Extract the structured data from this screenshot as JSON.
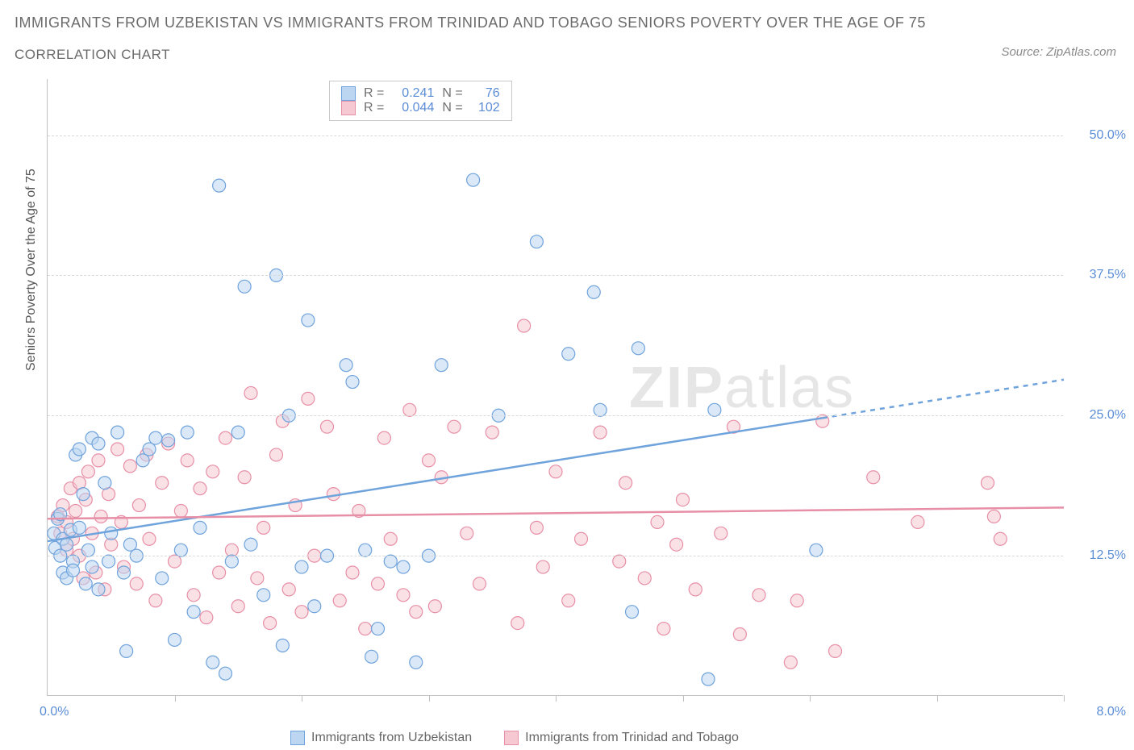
{
  "title_main": "IMMIGRANTS FROM UZBEKISTAN VS IMMIGRANTS FROM TRINIDAD AND TOBAGO SENIORS POVERTY OVER THE AGE OF 75",
  "title_sub": "CORRELATION CHART",
  "source": "Source: ZipAtlas.com",
  "y_axis_label": "Seniors Poverty Over the Age of 75",
  "watermark_zip": "ZIP",
  "watermark_atlas": "atlas",
  "chart": {
    "type": "scatter",
    "x_min": 0.0,
    "x_max": 8.0,
    "y_min": 0.0,
    "y_max": 55.0,
    "y_ticks": [
      12.5,
      25.0,
      37.5,
      50.0
    ],
    "y_tick_labels": [
      "12.5%",
      "25.0%",
      "37.5%",
      "50.0%"
    ],
    "x_ticks": [
      1.0,
      2.0,
      3.0,
      4.0,
      5.0,
      6.0,
      7.0,
      8.0
    ],
    "x_min_label": "0.0%",
    "x_max_label": "8.0%",
    "background": "#ffffff",
    "grid_color": "#d8d8d8",
    "axis_color": "#c0c0c0",
    "marker_radius": 8,
    "marker_opacity": 0.55,
    "series": [
      {
        "name": "Immigrants from Uzbekistan",
        "color_fill": "#bcd5f0",
        "color_stroke": "#6fa3dc",
        "r_label": "R =",
        "r_value": "0.241",
        "n_label": "N =",
        "n_value": "76",
        "trend_line": {
          "x1": 0.0,
          "y1": 13.8,
          "x2": 8.0,
          "y2": 28.2,
          "solid_until_x": 6.1
        },
        "points": [
          [
            0.05,
            14.5
          ],
          [
            0.06,
            13.2
          ],
          [
            0.08,
            15.8
          ],
          [
            0.1,
            12.5
          ],
          [
            0.1,
            16.2
          ],
          [
            0.12,
            11.0
          ],
          [
            0.12,
            14.0
          ],
          [
            0.15,
            10.5
          ],
          [
            0.15,
            13.5
          ],
          [
            0.18,
            14.8
          ],
          [
            0.2,
            12.0
          ],
          [
            0.2,
            11.2
          ],
          [
            0.22,
            21.5
          ],
          [
            0.25,
            15.0
          ],
          [
            0.25,
            22.0
          ],
          [
            0.28,
            18.0
          ],
          [
            0.3,
            10.0
          ],
          [
            0.32,
            13.0
          ],
          [
            0.35,
            11.5
          ],
          [
            0.35,
            23.0
          ],
          [
            0.4,
            9.5
          ],
          [
            0.4,
            22.5
          ],
          [
            0.45,
            19.0
          ],
          [
            0.48,
            12.0
          ],
          [
            0.5,
            14.5
          ],
          [
            0.55,
            23.5
          ],
          [
            0.6,
            11.0
          ],
          [
            0.62,
            4.0
          ],
          [
            0.65,
            13.5
          ],
          [
            0.7,
            12.5
          ],
          [
            0.75,
            21.0
          ],
          [
            0.8,
            22.0
          ],
          [
            0.85,
            23.0
          ],
          [
            0.9,
            10.5
          ],
          [
            0.95,
            22.8
          ],
          [
            1.0,
            5.0
          ],
          [
            1.05,
            13.0
          ],
          [
            1.1,
            23.5
          ],
          [
            1.15,
            7.5
          ],
          [
            1.2,
            15.0
          ],
          [
            1.3,
            3.0
          ],
          [
            1.35,
            45.5
          ],
          [
            1.4,
            2.0
          ],
          [
            1.45,
            12.0
          ],
          [
            1.5,
            23.5
          ],
          [
            1.55,
            36.5
          ],
          [
            1.6,
            13.5
          ],
          [
            1.7,
            9.0
          ],
          [
            1.8,
            37.5
          ],
          [
            1.85,
            4.5
          ],
          [
            1.9,
            25.0
          ],
          [
            2.0,
            11.5
          ],
          [
            2.05,
            33.5
          ],
          [
            2.1,
            8.0
          ],
          [
            2.2,
            12.5
          ],
          [
            2.35,
            29.5
          ],
          [
            2.4,
            28.0
          ],
          [
            2.5,
            13.0
          ],
          [
            2.55,
            3.5
          ],
          [
            2.6,
            6.0
          ],
          [
            2.7,
            12.0
          ],
          [
            2.8,
            11.5
          ],
          [
            2.9,
            3.0
          ],
          [
            3.0,
            12.5
          ],
          [
            3.1,
            29.5
          ],
          [
            3.35,
            46.0
          ],
          [
            3.55,
            25.0
          ],
          [
            3.85,
            40.5
          ],
          [
            4.1,
            30.5
          ],
          [
            4.3,
            36.0
          ],
          [
            4.35,
            25.5
          ],
          [
            4.6,
            7.5
          ],
          [
            4.65,
            31.0
          ],
          [
            5.2,
            1.5
          ],
          [
            5.25,
            25.5
          ],
          [
            6.05,
            13.0
          ]
        ]
      },
      {
        "name": "Immigrants from Trinidad and Tobago",
        "color_fill": "#f5c8d2",
        "color_stroke": "#e78fa6",
        "r_label": "R =",
        "r_value": "0.044",
        "n_label": "N =",
        "n_value": "102",
        "trend_line": {
          "x1": 0.0,
          "y1": 15.8,
          "x2": 8.0,
          "y2": 16.8,
          "solid_until_x": 8.0
        },
        "points": [
          [
            0.08,
            16.0
          ],
          [
            0.1,
            14.5
          ],
          [
            0.12,
            17.0
          ],
          [
            0.15,
            15.5
          ],
          [
            0.15,
            13.0
          ],
          [
            0.18,
            18.5
          ],
          [
            0.2,
            14.0
          ],
          [
            0.22,
            16.5
          ],
          [
            0.25,
            12.5
          ],
          [
            0.25,
            19.0
          ],
          [
            0.28,
            10.5
          ],
          [
            0.3,
            17.5
          ],
          [
            0.32,
            20.0
          ],
          [
            0.35,
            14.5
          ],
          [
            0.38,
            11.0
          ],
          [
            0.4,
            21.0
          ],
          [
            0.42,
            16.0
          ],
          [
            0.45,
            9.5
          ],
          [
            0.48,
            18.0
          ],
          [
            0.5,
            13.5
          ],
          [
            0.55,
            22.0
          ],
          [
            0.58,
            15.5
          ],
          [
            0.6,
            11.5
          ],
          [
            0.65,
            20.5
          ],
          [
            0.7,
            10.0
          ],
          [
            0.72,
            17.0
          ],
          [
            0.78,
            21.5
          ],
          [
            0.8,
            14.0
          ],
          [
            0.85,
            8.5
          ],
          [
            0.9,
            19.0
          ],
          [
            0.95,
            22.5
          ],
          [
            1.0,
            12.0
          ],
          [
            1.05,
            16.5
          ],
          [
            1.1,
            21.0
          ],
          [
            1.15,
            9.0
          ],
          [
            1.2,
            18.5
          ],
          [
            1.25,
            7.0
          ],
          [
            1.3,
            20.0
          ],
          [
            1.35,
            11.0
          ],
          [
            1.4,
            23.0
          ],
          [
            1.45,
            13.0
          ],
          [
            1.5,
            8.0
          ],
          [
            1.55,
            19.5
          ],
          [
            1.6,
            27.0
          ],
          [
            1.65,
            10.5
          ],
          [
            1.7,
            15.0
          ],
          [
            1.75,
            6.5
          ],
          [
            1.8,
            21.5
          ],
          [
            1.85,
            24.5
          ],
          [
            1.9,
            9.5
          ],
          [
            1.95,
            17.0
          ],
          [
            2.0,
            7.5
          ],
          [
            2.05,
            26.5
          ],
          [
            2.1,
            12.5
          ],
          [
            2.2,
            24.0
          ],
          [
            2.25,
            18.0
          ],
          [
            2.3,
            8.5
          ],
          [
            2.4,
            11.0
          ],
          [
            2.45,
            16.5
          ],
          [
            2.5,
            6.0
          ],
          [
            2.6,
            10.0
          ],
          [
            2.65,
            23.0
          ],
          [
            2.7,
            14.0
          ],
          [
            2.8,
            9.0
          ],
          [
            2.85,
            25.5
          ],
          [
            2.9,
            7.5
          ],
          [
            3.0,
            21.0
          ],
          [
            3.05,
            8.0
          ],
          [
            3.1,
            19.5
          ],
          [
            3.2,
            24.0
          ],
          [
            3.3,
            14.5
          ],
          [
            3.4,
            10.0
          ],
          [
            3.5,
            23.5
          ],
          [
            3.7,
            6.5
          ],
          [
            3.75,
            33.0
          ],
          [
            3.85,
            15.0
          ],
          [
            3.9,
            11.5
          ],
          [
            4.0,
            20.0
          ],
          [
            4.1,
            8.5
          ],
          [
            4.2,
            14.0
          ],
          [
            4.35,
            23.5
          ],
          [
            4.5,
            12.0
          ],
          [
            4.55,
            19.0
          ],
          [
            4.7,
            10.5
          ],
          [
            4.8,
            15.5
          ],
          [
            4.85,
            6.0
          ],
          [
            4.95,
            13.5
          ],
          [
            5.0,
            17.5
          ],
          [
            5.1,
            9.5
          ],
          [
            5.3,
            14.5
          ],
          [
            5.4,
            24.0
          ],
          [
            5.45,
            5.5
          ],
          [
            5.6,
            9.0
          ],
          [
            5.9,
            8.5
          ],
          [
            6.1,
            24.5
          ],
          [
            6.2,
            4.0
          ],
          [
            6.5,
            19.5
          ],
          [
            6.85,
            15.5
          ],
          [
            7.4,
            19.0
          ],
          [
            7.45,
            16.0
          ],
          [
            7.5,
            14.0
          ],
          [
            5.85,
            3.0
          ]
        ]
      }
    ]
  },
  "stat_box": {
    "rows": [
      {
        "swatch_fill": "#bcd5f0",
        "swatch_stroke": "#6fa3dc",
        "r_lbl": "R =",
        "r": "0.241",
        "n_lbl": "N =",
        "n": "76"
      },
      {
        "swatch_fill": "#f5c8d2",
        "swatch_stroke": "#e78fa6",
        "r_lbl": "R =",
        "r": "0.044",
        "n_lbl": "N =",
        "n": "102"
      }
    ]
  },
  "legend_bottom": [
    {
      "swatch_fill": "#bcd5f0",
      "swatch_stroke": "#6fa3dc",
      "label": "Immigrants from Uzbekistan"
    },
    {
      "swatch_fill": "#f5c8d2",
      "swatch_stroke": "#e78fa6",
      "label": "Immigrants from Trinidad and Tobago"
    }
  ]
}
